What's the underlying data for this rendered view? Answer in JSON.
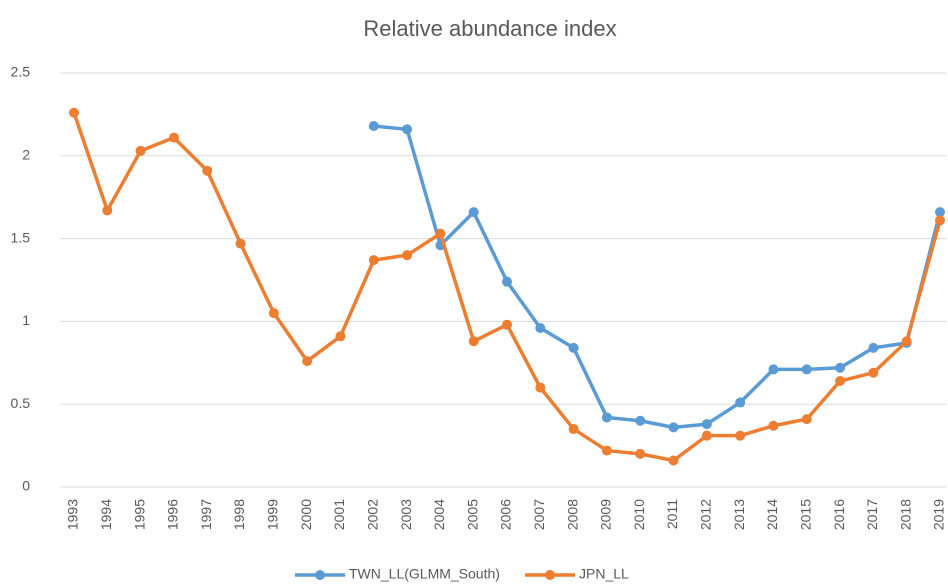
{
  "chart_data": {
    "type": "line",
    "title": "Relative abundance index",
    "categories": [
      "1993",
      "1994",
      "1995",
      "1996",
      "1997",
      "1998",
      "1999",
      "2000",
      "2001",
      "2002",
      "2003",
      "2004",
      "2005",
      "2006",
      "2007",
      "2008",
      "2009",
      "2010",
      "2011",
      "2012",
      "2013",
      "2014",
      "2015",
      "2016",
      "2017",
      "2018",
      "2019"
    ],
    "series": [
      {
        "name": "TWN_LL(GLMM_South)",
        "color": "#5b9bd5",
        "values": [
          null,
          null,
          null,
          null,
          null,
          null,
          null,
          null,
          null,
          2.18,
          2.16,
          1.46,
          1.66,
          1.24,
          0.96,
          0.84,
          0.42,
          0.4,
          0.36,
          0.38,
          0.51,
          0.71,
          0.71,
          0.72,
          0.84,
          0.87,
          1.66
        ]
      },
      {
        "name": "JPN_LL",
        "color": "#ed7d31",
        "values": [
          2.26,
          1.67,
          2.03,
          2.11,
          1.91,
          1.47,
          1.05,
          0.76,
          0.91,
          1.37,
          1.4,
          1.53,
          0.88,
          0.98,
          0.6,
          0.35,
          0.22,
          0.2,
          0.16,
          0.31,
          0.31,
          0.37,
          0.41,
          0.64,
          0.69,
          0.88,
          1.61
        ]
      }
    ],
    "ylim": [
      0,
      2.5
    ],
    "yticks": [
      0,
      0.5,
      1,
      1.5,
      2,
      2.5
    ],
    "grid": true
  }
}
